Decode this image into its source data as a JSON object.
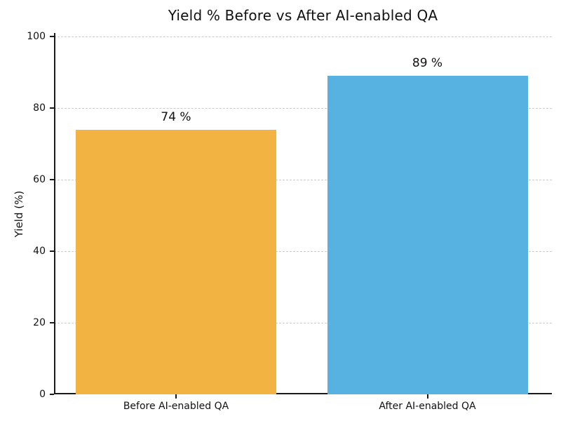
{
  "chart_data": {
    "type": "bar",
    "title": "Yield % Before vs After AI-enabled QA",
    "xlabel": "",
    "ylabel": "Yield (%)",
    "categories": [
      "Before AI-enabled QA",
      "After AI-enabled QA"
    ],
    "values": [
      74,
      89
    ],
    "value_labels": [
      "74 %",
      "89 %"
    ],
    "bar_colors": [
      "#F2B342",
      "#57B1E1"
    ],
    "ylim": [
      0,
      101
    ],
    "yticks": [
      0,
      20,
      40,
      60,
      80,
      100
    ],
    "ytick_labels": [
      "0",
      "20",
      "40",
      "60",
      "80",
      "100"
    ],
    "grid": "horizontal-dashed",
    "legend": "none",
    "background_color": "#ffffff",
    "text_color": "#111111"
  }
}
